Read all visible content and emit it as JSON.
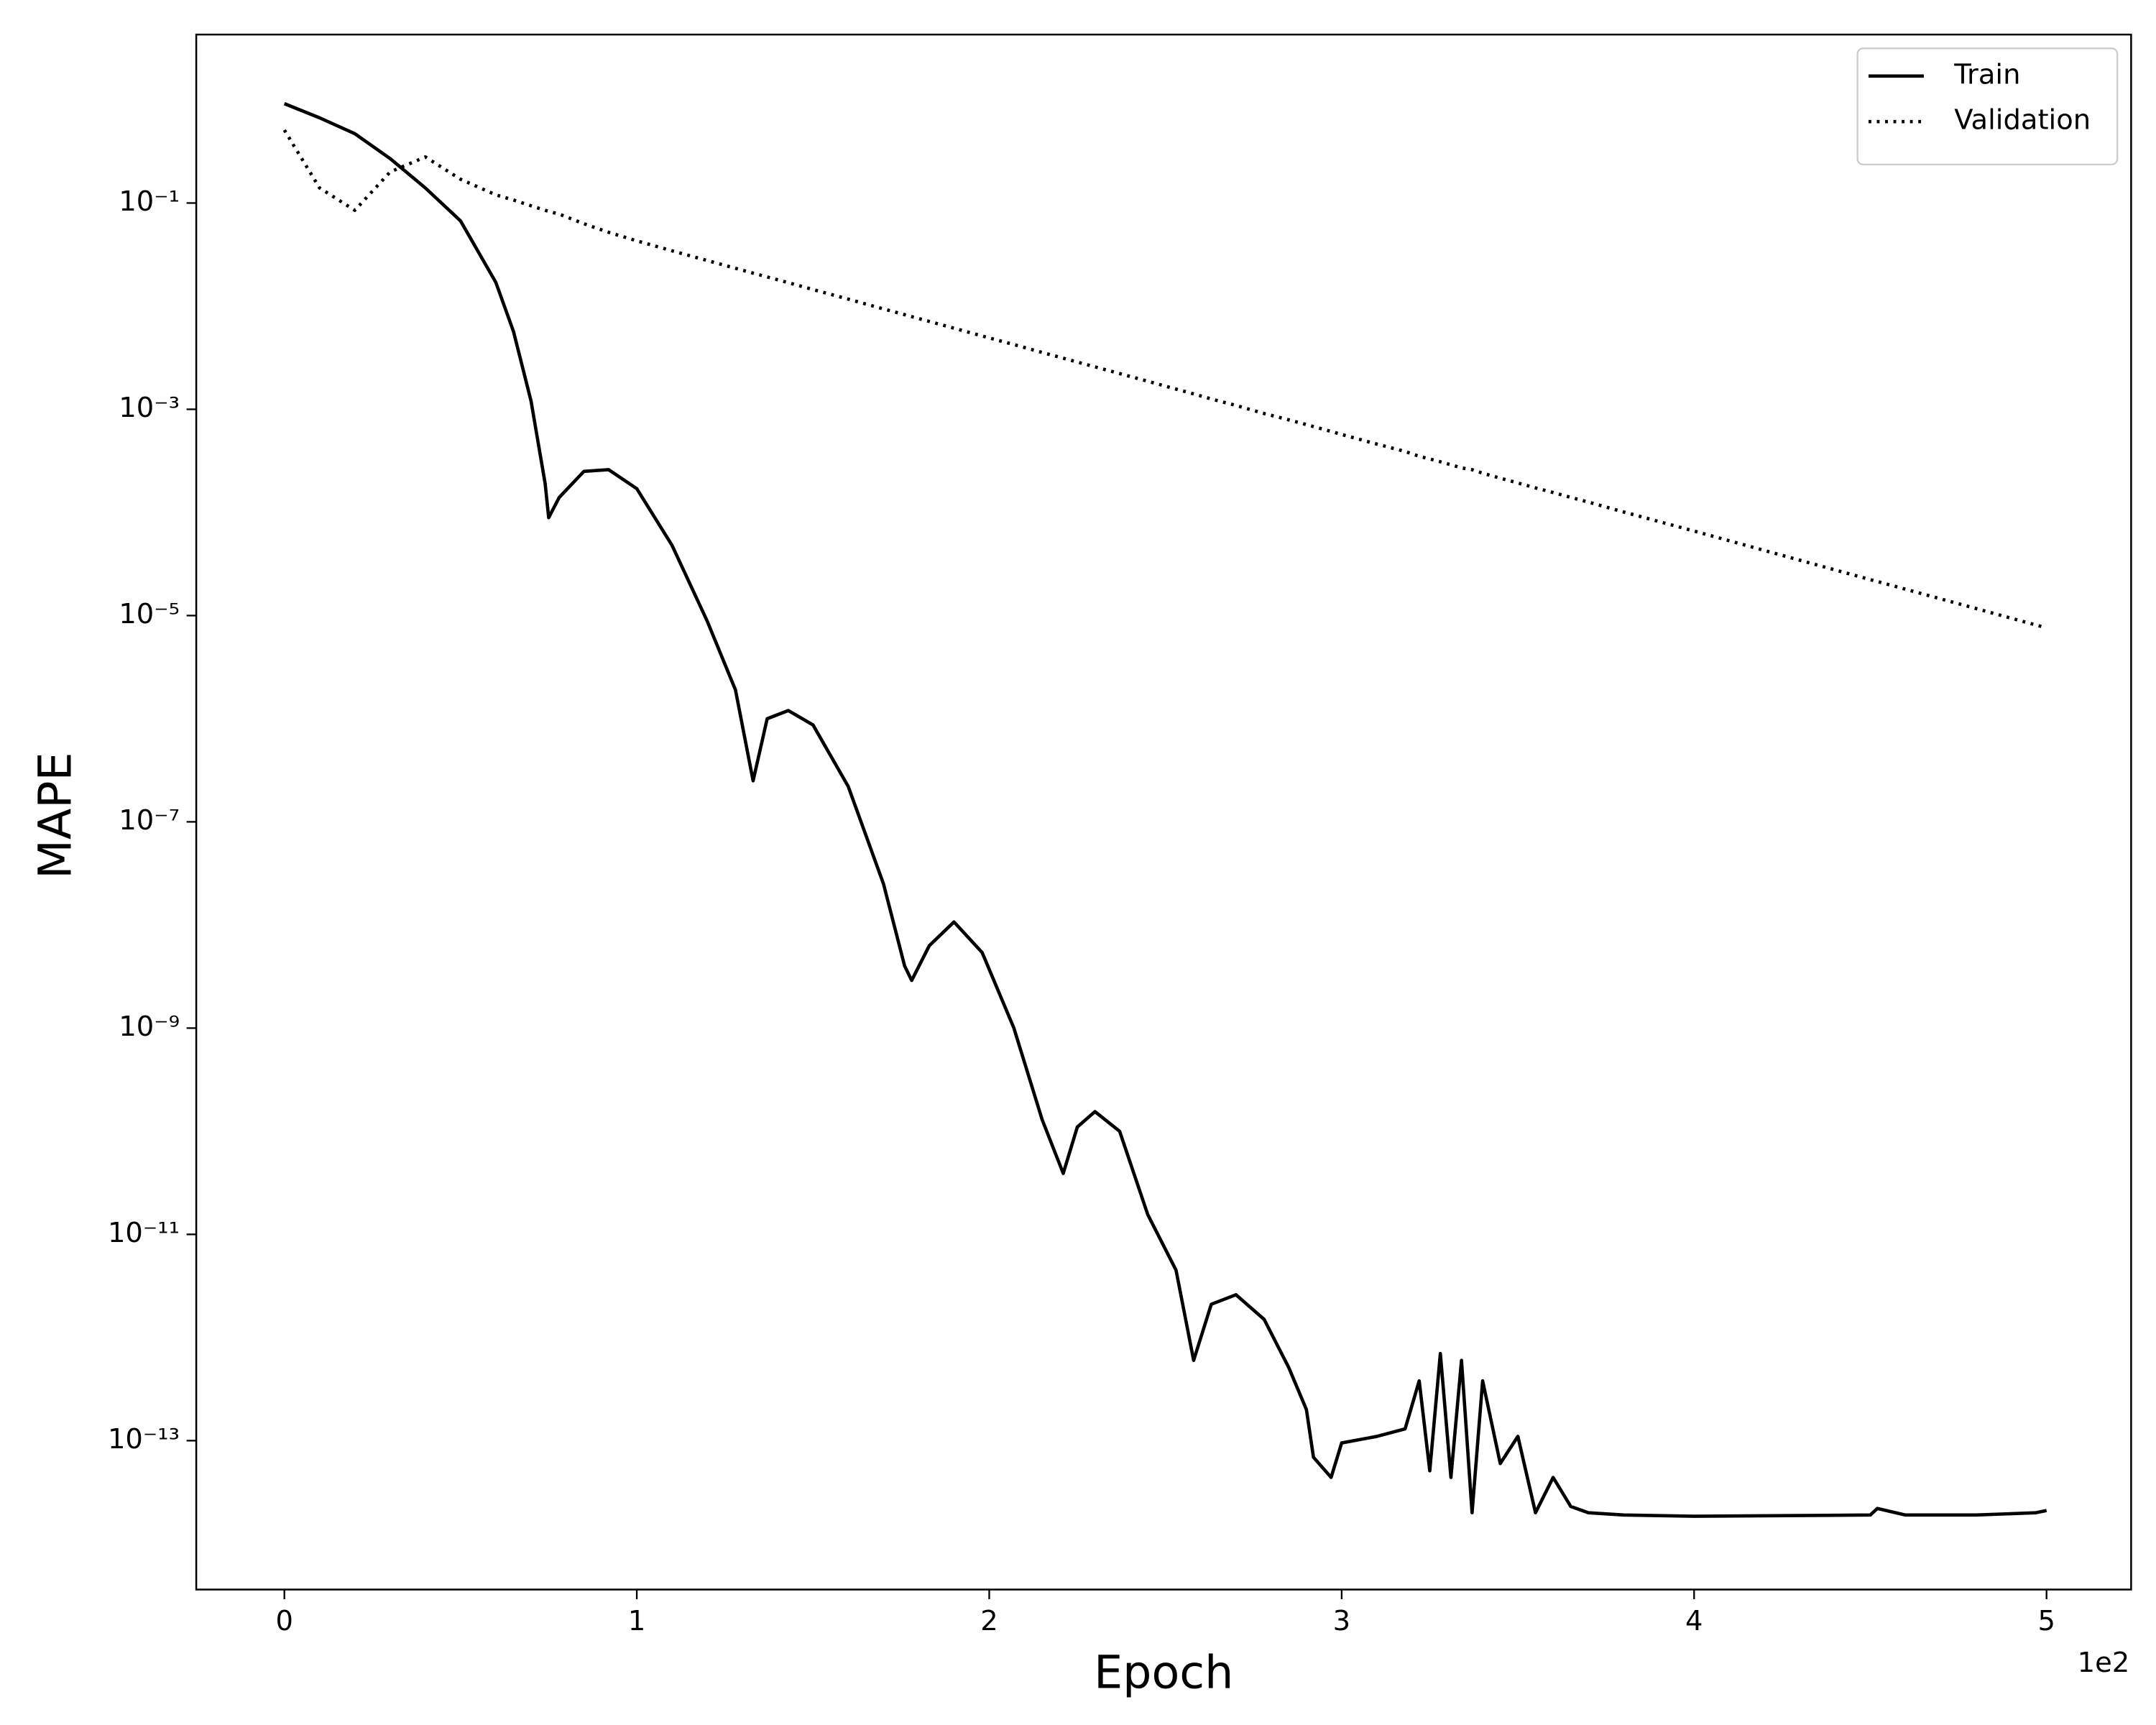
{
  "chart_data": {
    "type": "line",
    "x_label": "Epoch",
    "y_label": "MAPE",
    "x_offset_label": "1e2",
    "log_y": true,
    "grid": false,
    "legend": "upper right",
    "x": [
      0,
      10,
      20,
      30,
      40,
      50,
      60,
      65,
      70,
      74,
      75,
      78,
      85,
      92,
      100,
      110,
      120,
      128,
      133,
      137,
      143,
      150,
      160,
      170,
      176,
      178,
      183,
      190,
      198,
      207,
      215,
      221,
      225,
      230,
      237,
      245,
      253,
      258,
      263,
      270,
      278,
      285,
      290,
      292,
      297,
      300,
      310,
      318,
      322,
      325,
      328,
      331,
      334,
      337,
      340,
      345,
      350,
      355,
      360,
      365,
      370,
      380,
      400,
      450,
      452,
      460,
      480,
      497,
      500
    ],
    "series": [
      {
        "name": "Train",
        "color": "#000000",
        "linestyle": "solid",
        "values": [
          0.92,
          0.67,
          0.47,
          0.27,
          0.14,
          0.067,
          0.017,
          0.0057,
          0.0012,
          0.00019,
          8.9e-05,
          0.00014,
          0.00025,
          0.00026,
          0.00017,
          4.8e-05,
          8.8e-06,
          1.9e-06,
          2.5e-07,
          1e-06,
          1.2e-06,
          8.7e-07,
          2.2e-07,
          2.5e-08,
          4e-09,
          2.9e-09,
          6.3e-09,
          1.07e-08,
          5.4e-09,
          1e-09,
          1.3e-10,
          3.9e-11,
          1.1e-10,
          1.55e-10,
          1e-10,
          1.55e-11,
          4.5e-12,
          6e-13,
          2.1e-12,
          2.6e-12,
          1.5e-12,
          5.1e-13,
          2e-13,
          6.9e-14,
          4.4e-14,
          9.5e-14,
          1.1e-13,
          1.3e-13,
          3.8e-13,
          5.1e-14,
          7e-13,
          4.4e-14,
          6e-13,
          2e-14,
          3.8e-13,
          6e-14,
          1.1e-13,
          2e-14,
          4.4e-14,
          2.3e-14,
          2e-14,
          1.9e-14,
          1.85e-14,
          1.9e-14,
          2.2e-14,
          1.9e-14,
          1.9e-14,
          2e-14,
          2.1e-14
        ]
      },
      {
        "name": "Validation",
        "color": "#000000",
        "linestyle": "dotted",
        "values": [
          0.51,
          0.14,
          0.085,
          0.2,
          0.28,
          0.17,
          0.12,
          0.107,
          0.094,
          0.085,
          0.083,
          0.078,
          0.063,
          0.052,
          0.043,
          0.0344,
          0.0277,
          0.0233,
          0.0209,
          0.0192,
          0.0169,
          0.0145,
          0.0117,
          0.0094,
          0.00827,
          0.00792,
          0.00711,
          0.00611,
          0.00514,
          0.00424,
          0.00356,
          0.00313,
          0.00287,
          0.00258,
          0.00222,
          0.00187,
          0.00157,
          0.00141,
          0.00126,
          0.00109,
          0.00091,
          0.00079,
          0.00071,
          0.00068,
          0.00061,
          0.00057,
          0.00046,
          0.00039,
          0.00035,
          0.00033,
          0.00031,
          0.00029,
          0.00027,
          0.00026,
          0.00024,
          0.000215,
          0.000193,
          0.000173,
          0.000156,
          0.00014,
          0.000126,
          0.000101,
          6.6e-05,
          2.23e-05,
          2.14e-05,
          1.8e-05,
          1.17e-05,
          8.1e-06,
          7.6e-06
        ]
      }
    ],
    "xlim": [
      -25,
      524
    ],
    "xticks": [
      {
        "value": 0,
        "label": "0"
      },
      {
        "value": 100,
        "label": "1"
      },
      {
        "value": 200,
        "label": "2"
      },
      {
        "value": 300,
        "label": "3"
      },
      {
        "value": 400,
        "label": "4"
      },
      {
        "value": 500,
        "label": "5"
      }
    ],
    "ylim": [
      3.6e-15,
      4.3
    ],
    "yticks": [
      {
        "value": 0.1,
        "label": "10⁻¹"
      },
      {
        "value": 0.001,
        "label": "10⁻³"
      },
      {
        "value": 1e-05,
        "label": "10⁻⁵"
      },
      {
        "value": 1e-07,
        "label": "10⁻⁷"
      },
      {
        "value": 1e-09,
        "label": "10⁻⁹"
      },
      {
        "value": 1e-11,
        "label": "10⁻¹¹"
      },
      {
        "value": 1e-13,
        "label": "10⁻¹³"
      }
    ]
  }
}
